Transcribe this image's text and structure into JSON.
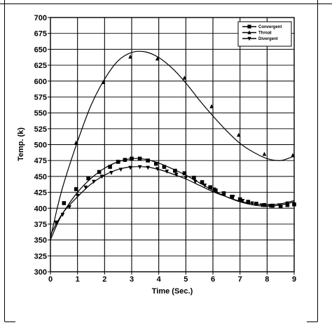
{
  "chart_data": {
    "type": "line",
    "title": "",
    "xlabel": "Time (Sec.)",
    "ylabel": "Temp. (k)",
    "xlim": [
      0,
      9
    ],
    "ylim": [
      300,
      700
    ],
    "xticks": [
      0,
      1,
      2,
      3,
      4,
      5,
      6,
      7,
      8,
      9
    ],
    "yticks": [
      300,
      325,
      350,
      375,
      400,
      425,
      450,
      475,
      500,
      525,
      550,
      575,
      600,
      625,
      650,
      675,
      700
    ],
    "grid": true,
    "legend_position": "top-right",
    "series": [
      {
        "name": "Convergent",
        "marker": "square",
        "color": "#000000",
        "curve": {
          "x": [
            0,
            0.25,
            0.5,
            1,
            1.5,
            2,
            2.5,
            3,
            3.5,
            4,
            4.5,
            5,
            5.5,
            6,
            6.5,
            7,
            7.5,
            8,
            8.5,
            9
          ],
          "y": [
            350,
            375,
            395,
            425,
            447,
            463,
            473,
            478,
            477,
            471,
            462,
            452,
            440,
            428,
            418,
            410,
            405,
            403,
            405,
            410
          ]
        },
        "points": {
          "x": [
            0.5,
            0.95,
            1.4,
            1.8,
            2.2,
            2.5,
            2.75,
            3.0,
            3.3,
            3.6,
            3.9,
            4.2,
            4.6,
            4.95,
            5.3,
            5.6,
            5.9,
            6.1,
            6.4,
            6.7,
            7.0,
            7.3,
            7.6,
            7.9,
            8.2,
            8.5,
            8.75,
            9.0
          ],
          "y": [
            408,
            430,
            447,
            457,
            465,
            473,
            476,
            478,
            478,
            475,
            470,
            465,
            459,
            455,
            448,
            441,
            433,
            428,
            423,
            418,
            414,
            410,
            407,
            405,
            404,
            403,
            405,
            406
          ]
        }
      },
      {
        "name": "Throat",
        "marker": "triangle-up",
        "color": "#000000",
        "curve": {
          "x": [
            0,
            0.25,
            0.5,
            1,
            1.5,
            2,
            2.5,
            3,
            3.5,
            4,
            4.5,
            5,
            5.5,
            6,
            6.5,
            7,
            7.5,
            8,
            8.5,
            9
          ],
          "y": [
            352,
            400,
            440,
            505,
            562,
            603,
            632,
            645,
            646,
            637,
            620,
            597,
            570,
            545,
            522,
            502,
            488,
            478,
            475,
            482
          ]
        },
        "points": {
          "x": [
            0.95,
            1.95,
            2.95,
            3.95,
            4.95,
            5.95,
            6.95,
            7.9,
            8.95
          ],
          "y": [
            503,
            598,
            638,
            635,
            605,
            560,
            515,
            485,
            483
          ]
        }
      },
      {
        "name": "Divergent",
        "marker": "triangle-down",
        "color": "#000000",
        "curve": {
          "x": [
            0,
            0.25,
            0.5,
            1,
            1.5,
            2,
            2.5,
            3,
            3.5,
            4,
            4.5,
            5,
            5.5,
            6,
            6.5,
            7,
            7.5,
            8,
            8.5,
            9
          ],
          "y": [
            358,
            378,
            395,
            418,
            438,
            452,
            461,
            465,
            465,
            461,
            454,
            446,
            436,
            426,
            418,
            411,
            407,
            405,
            407,
            412
          ]
        },
        "points": {
          "x": [
            0.2,
            0.45,
            0.7,
            1.0,
            1.3,
            1.6,
            1.9,
            2.25,
            2.6,
            2.95,
            3.3,
            3.6,
            3.95,
            4.3,
            4.65,
            5.0,
            5.35,
            5.7,
            6.05,
            6.4,
            6.75,
            7.1,
            7.45,
            7.8,
            8.1,
            8.45,
            8.75
          ],
          "y": [
            378,
            390,
            402,
            420,
            433,
            442,
            450,
            456,
            461,
            464,
            465,
            464,
            462,
            458,
            453,
            448,
            442,
            436,
            430,
            424,
            418,
            412,
            408,
            405,
            404,
            405,
            408
          ]
        }
      }
    ]
  }
}
